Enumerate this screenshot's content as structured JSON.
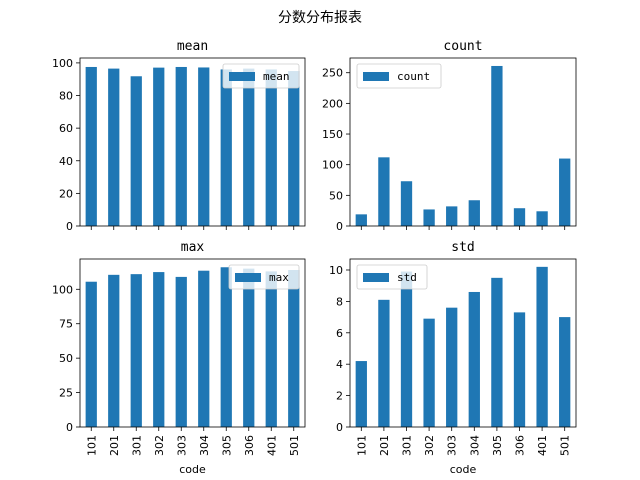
{
  "page": {
    "title": "分数分布报表"
  },
  "chart_data": [
    {
      "type": "bar",
      "title": "mean",
      "categories": [
        "101",
        "201",
        "301",
        "302",
        "303",
        "304",
        "305",
        "306",
        "401",
        "501"
      ],
      "series": [
        {
          "name": "mean",
          "values": [
            97.5,
            96.5,
            91.8,
            97.1,
            97.5,
            97.2,
            96.0,
            96.5,
            96.0,
            95.0
          ]
        }
      ],
      "xlabel": "",
      "ylabel": "",
      "ylim": [
        0,
        103
      ],
      "yticks": [
        0,
        20,
        40,
        60,
        80,
        100
      ],
      "show_xticklabels": false,
      "legend": "top-right",
      "color": "#1f77b4"
    },
    {
      "type": "bar",
      "title": "count",
      "categories": [
        "101",
        "201",
        "301",
        "302",
        "303",
        "304",
        "305",
        "306",
        "401",
        "501"
      ],
      "series": [
        {
          "name": "count",
          "values": [
            19,
            112,
            73,
            27,
            32,
            42,
            261,
            29,
            24,
            110
          ]
        }
      ],
      "xlabel": "",
      "ylabel": "",
      "ylim": [
        0,
        274
      ],
      "yticks": [
        0,
        50,
        100,
        150,
        200,
        250
      ],
      "show_xticklabels": false,
      "legend": "top-left",
      "color": "#1f77b4"
    },
    {
      "type": "bar",
      "title": "max",
      "categories": [
        "101",
        "201",
        "301",
        "302",
        "303",
        "304",
        "305",
        "306",
        "401",
        "501"
      ],
      "series": [
        {
          "name": "max",
          "values": [
            105.5,
            110.5,
            111.0,
            112.5,
            109.0,
            113.5,
            116.0,
            115.0,
            113.0,
            114.0
          ]
        }
      ],
      "xlabel": "code",
      "ylabel": "",
      "ylim": [
        0,
        122
      ],
      "yticks": [
        0,
        25,
        50,
        75,
        100
      ],
      "show_xticklabels": true,
      "legend": "top-right",
      "color": "#1f77b4"
    },
    {
      "type": "bar",
      "title": "std",
      "categories": [
        "101",
        "201",
        "301",
        "302",
        "303",
        "304",
        "305",
        "306",
        "401",
        "501"
      ],
      "series": [
        {
          "name": "std",
          "values": [
            4.2,
            8.1,
            9.9,
            6.9,
            7.6,
            8.6,
            9.5,
            7.3,
            10.2,
            7.0
          ]
        }
      ],
      "xlabel": "code",
      "ylabel": "",
      "ylim": [
        0,
        10.7
      ],
      "yticks": [
        0,
        2,
        4,
        6,
        8,
        10
      ],
      "show_xticklabels": true,
      "legend": "top-left",
      "color": "#1f77b4"
    }
  ]
}
